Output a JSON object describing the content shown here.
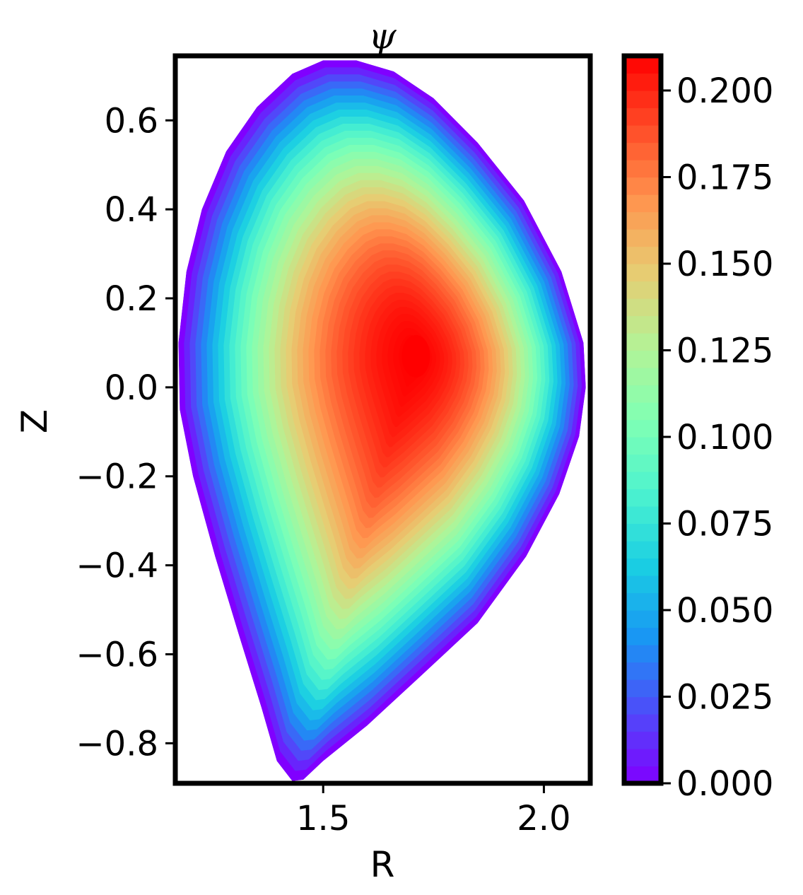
{
  "chart_data": {
    "type": "heatmap",
    "subtype": "filled-contour",
    "title": "ψ",
    "xlabel": "R",
    "ylabel": "Z",
    "xlim": [
      1.165,
      2.105
    ],
    "ylim": [
      -0.89,
      0.745
    ],
    "xticks": [
      1.5,
      2.0
    ],
    "xtick_labels": [
      "1.5",
      "2.0"
    ],
    "yticks": [
      0.6,
      0.4,
      0.2,
      0.0,
      -0.2,
      -0.4,
      -0.6,
      -0.8
    ],
    "ytick_labels": [
      "0.6",
      "0.4",
      "0.2",
      "0.0",
      "−0.2",
      "−0.4",
      "−0.6",
      "−0.8"
    ],
    "colormap": "rainbow",
    "colormap_stops": [
      "#8000ff",
      "#4d4df9",
      "#1996f3",
      "#1acee3",
      "#4df3ce",
      "#80ffb4",
      "#b3f396",
      "#e6cd73",
      "#ff964f",
      "#ff4d28",
      "#ff0000"
    ],
    "colorbar": {
      "range": [
        0.0,
        0.21
      ],
      "ticks": [
        0.0,
        0.025,
        0.05,
        0.075,
        0.1,
        0.125,
        0.15,
        0.175,
        0.2
      ],
      "tick_labels": [
        "0.000",
        "0.025",
        "0.050",
        "0.075",
        "0.100",
        "0.125",
        "0.150",
        "0.175",
        "0.200"
      ]
    },
    "field": {
      "description_units": "flux value at plasma boundary is 0.0; peak at magnetic axis",
      "magnetic_axis": {
        "R": 1.71,
        "Z": 0.07,
        "psi": 0.21
      },
      "boundary_psi": 0.0,
      "contour_levels": 42
    },
    "boundary": {
      "points_RZ": [
        [
          1.43,
          -0.885
        ],
        [
          1.395,
          -0.84
        ],
        [
          1.36,
          -0.72
        ],
        [
          1.31,
          -0.56
        ],
        [
          1.255,
          -0.38
        ],
        [
          1.205,
          -0.2
        ],
        [
          1.175,
          -0.05
        ],
        [
          1.172,
          0.1
        ],
        [
          1.19,
          0.26
        ],
        [
          1.225,
          0.4
        ],
        [
          1.28,
          0.53
        ],
        [
          1.35,
          0.63
        ],
        [
          1.43,
          0.705
        ],
        [
          1.5,
          0.735
        ],
        [
          1.575,
          0.735
        ],
        [
          1.66,
          0.71
        ],
        [
          1.75,
          0.65
        ],
        [
          1.85,
          0.55
        ],
        [
          1.955,
          0.42
        ],
        [
          2.04,
          0.26
        ],
        [
          2.09,
          0.1
        ],
        [
          2.095,
          0.0
        ],
        [
          2.08,
          -0.11
        ],
        [
          2.035,
          -0.24
        ],
        [
          1.96,
          -0.38
        ],
        [
          1.85,
          -0.53
        ],
        [
          1.72,
          -0.65
        ],
        [
          1.6,
          -0.76
        ],
        [
          1.5,
          -0.84
        ],
        [
          1.455,
          -0.882
        ]
      ]
    }
  }
}
